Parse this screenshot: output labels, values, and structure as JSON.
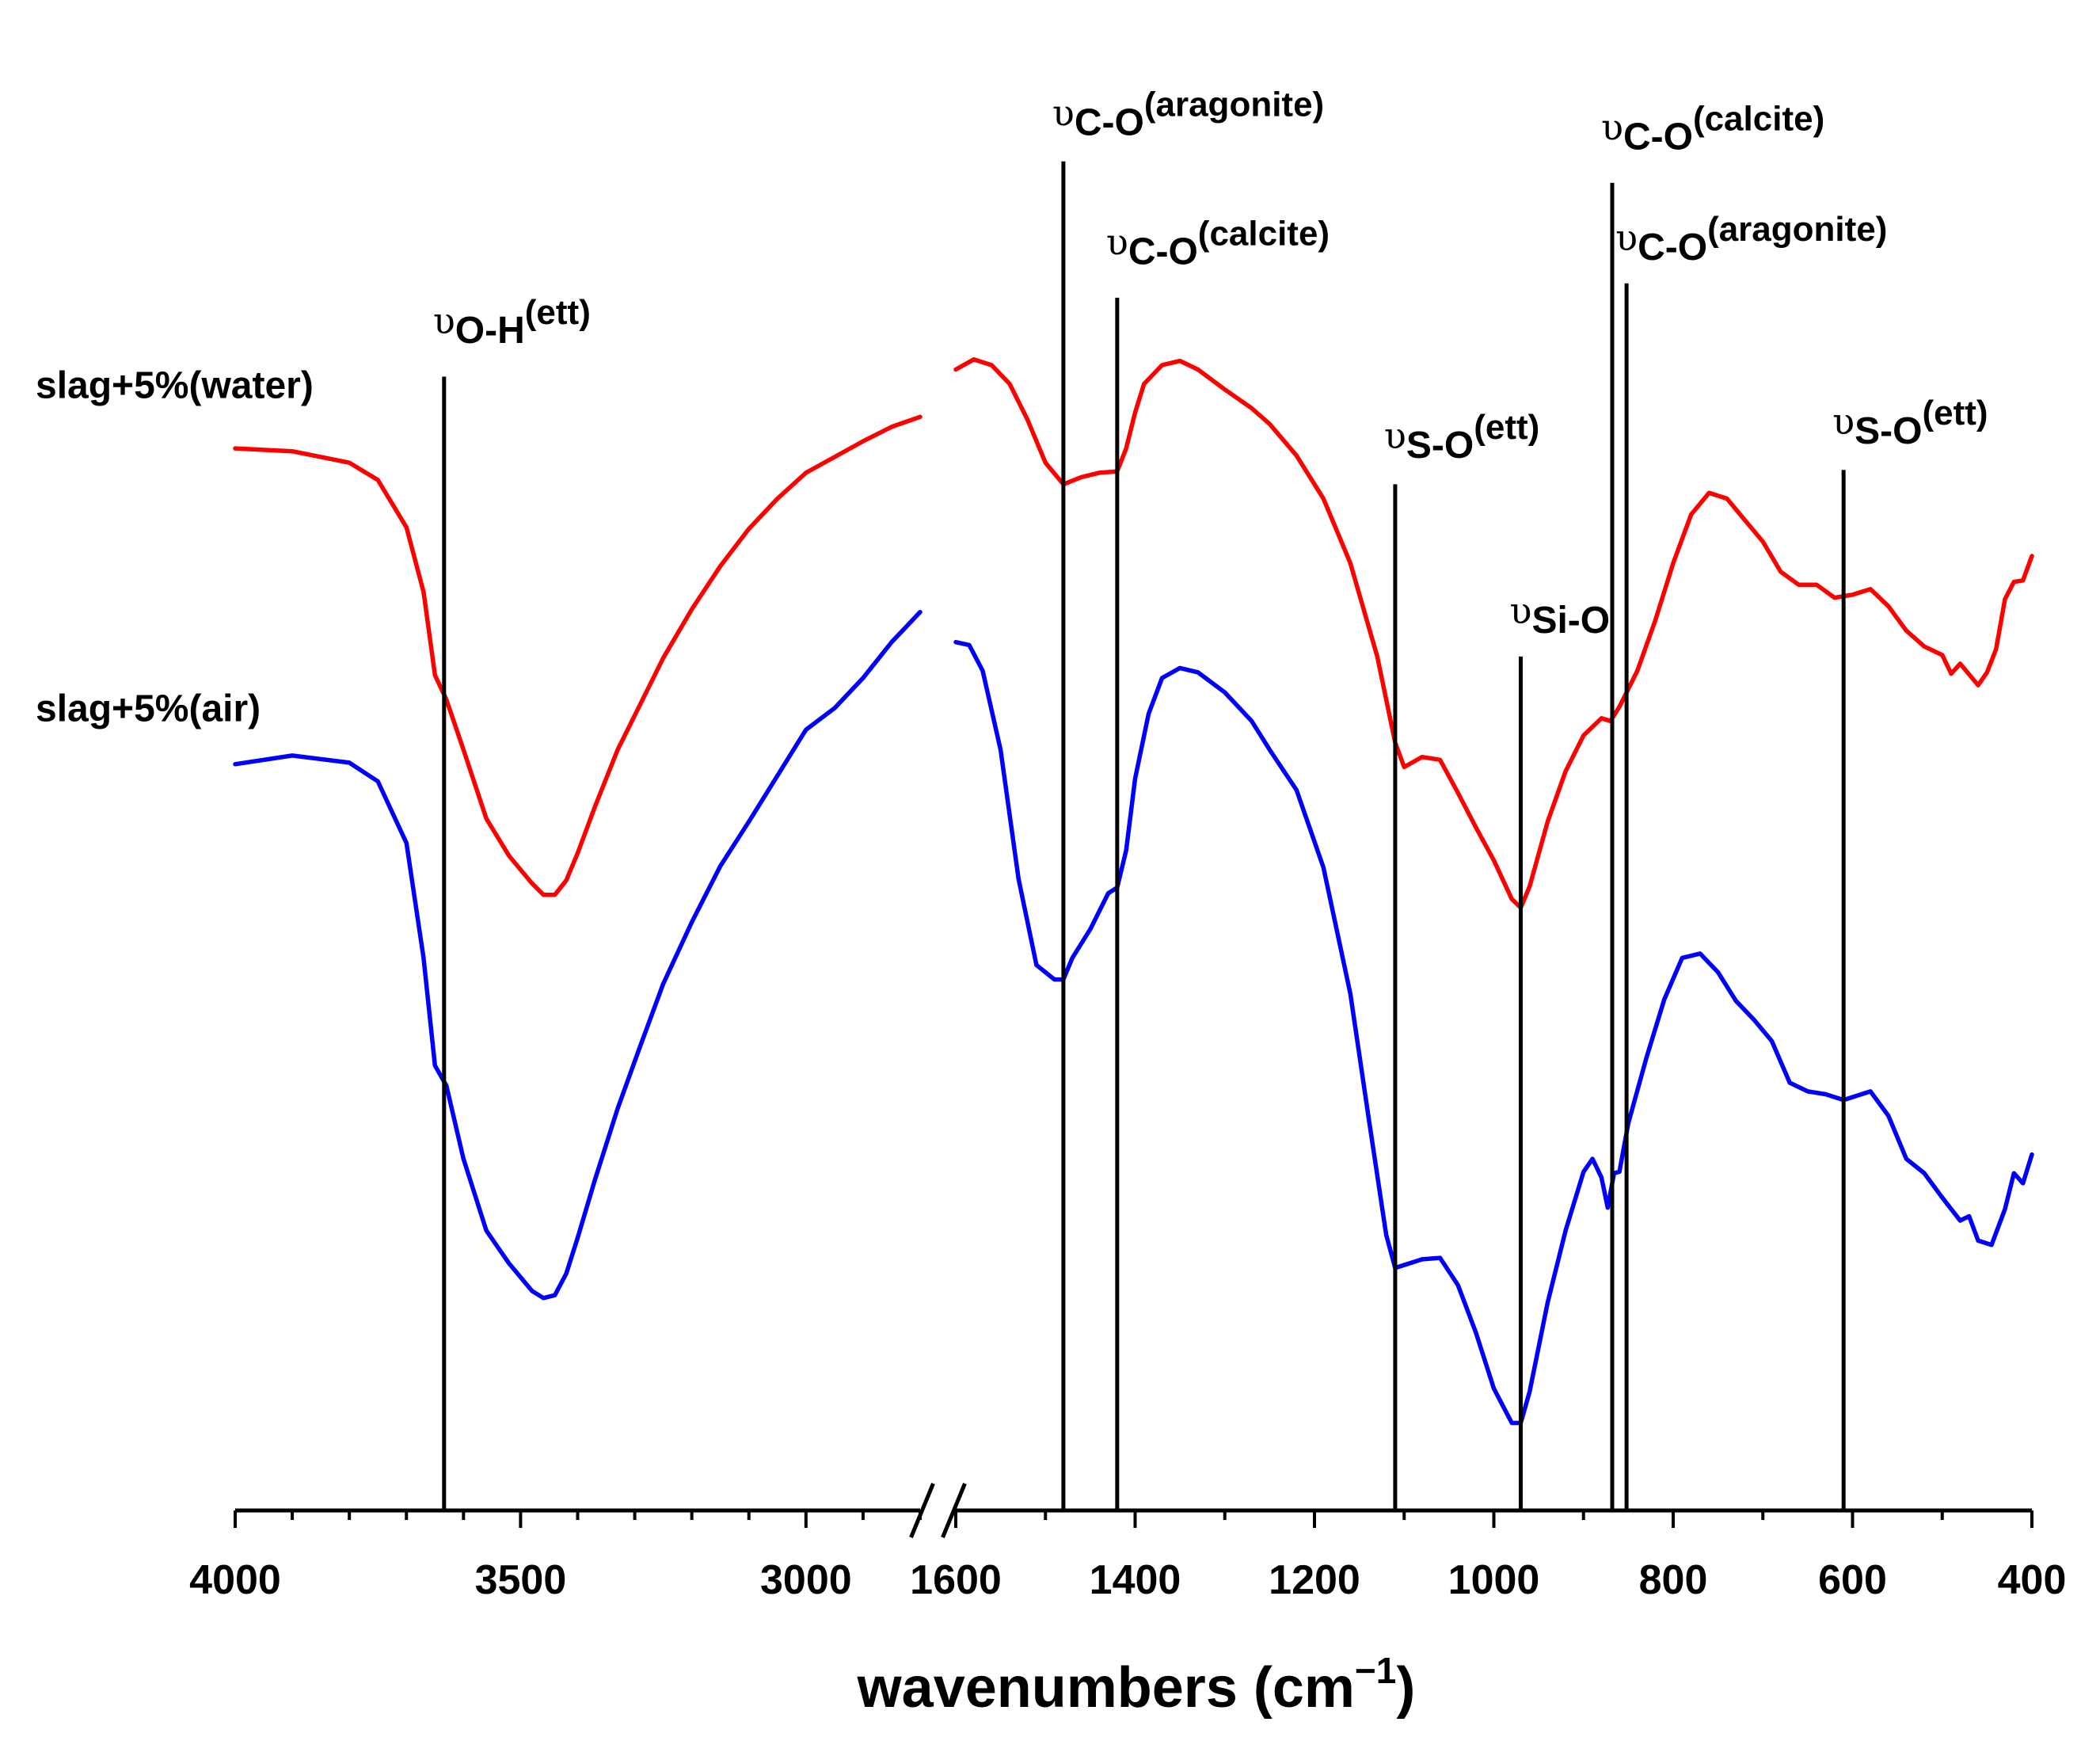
{
  "chart_data": {
    "type": "line",
    "title": "",
    "xlabel": "wavenumbers (cm",
    "xlabel_sup": "−1",
    "xlabel_close": ")",
    "ylabel": "",
    "x_reversed": true,
    "axis_break": {
      "between": [
        2800,
        1600
      ]
    },
    "segments": [
      {
        "xlim": [
          4000,
          2800
        ],
        "ticks": [
          4000,
          3500,
          3000
        ],
        "minor_step": 100
      },
      {
        "xlim": [
          1600,
          400
        ],
        "ticks": [
          1600,
          1400,
          1200,
          1000,
          800,
          600,
          400
        ],
        "minor_step": 100
      }
    ],
    "tick_labels": [
      "4000",
      "3500",
      "3000",
      "1600",
      "1400",
      "1200",
      "1000",
      "800",
      "600",
      "400"
    ],
    "y_units": "relative transmittance (arbitrary, 0 = bottom axis, 100 = top)",
    "ylim": [
      0,
      100
    ],
    "series": [
      {
        "name": "slag+5%(water)",
        "color": "#ff0000",
        "points": [
          [
            4000,
            74.0
          ],
          [
            3900,
            73.8
          ],
          [
            3800,
            73.0
          ],
          [
            3750,
            71.8
          ],
          [
            3700,
            68.5
          ],
          [
            3670,
            64.0
          ],
          [
            3650,
            58.2
          ],
          [
            3630,
            56.5
          ],
          [
            3600,
            53.0
          ],
          [
            3560,
            48.2
          ],
          [
            3520,
            45.6
          ],
          [
            3480,
            43.7
          ],
          [
            3460,
            42.9
          ],
          [
            3440,
            42.9
          ],
          [
            3420,
            43.9
          ],
          [
            3400,
            45.8
          ],
          [
            3370,
            49.0
          ],
          [
            3330,
            53.0
          ],
          [
            3290,
            56.2
          ],
          [
            3250,
            59.4
          ],
          [
            3200,
            62.8
          ],
          [
            3150,
            65.8
          ],
          [
            3100,
            68.4
          ],
          [
            3050,
            70.5
          ],
          [
            3000,
            72.3
          ],
          [
            2950,
            73.4
          ],
          [
            2900,
            74.5
          ],
          [
            2850,
            75.5
          ],
          [
            2800,
            76.2
          ],
          [
            1600,
            79.5
          ],
          [
            1580,
            80.2
          ],
          [
            1560,
            79.8
          ],
          [
            1540,
            78.5
          ],
          [
            1520,
            76.0
          ],
          [
            1500,
            73.0
          ],
          [
            1480,
            71.5
          ],
          [
            1460,
            72.0
          ],
          [
            1440,
            72.3
          ],
          [
            1420,
            72.4
          ],
          [
            1410,
            74.0
          ],
          [
            1400,
            76.5
          ],
          [
            1390,
            78.5
          ],
          [
            1370,
            79.8
          ],
          [
            1350,
            80.1
          ],
          [
            1330,
            79.5
          ],
          [
            1300,
            78.1
          ],
          [
            1270,
            76.8
          ],
          [
            1250,
            75.7
          ],
          [
            1220,
            73.5
          ],
          [
            1190,
            70.5
          ],
          [
            1160,
            66.0
          ],
          [
            1130,
            59.5
          ],
          [
            1110,
            53.5
          ],
          [
            1100,
            51.8
          ],
          [
            1080,
            52.5
          ],
          [
            1060,
            52.3
          ],
          [
            1040,
            50.0
          ],
          [
            1020,
            47.6
          ],
          [
            1000,
            45.3
          ],
          [
            980,
            42.6
          ],
          [
            970,
            42.0
          ],
          [
            960,
            43.5
          ],
          [
            940,
            48.0
          ],
          [
            920,
            51.5
          ],
          [
            900,
            54.0
          ],
          [
            880,
            55.2
          ],
          [
            870,
            55.0
          ],
          [
            860,
            56.0
          ],
          [
            840,
            58.5
          ],
          [
            820,
            62.0
          ],
          [
            800,
            66.0
          ],
          [
            780,
            69.4
          ],
          [
            760,
            70.9
          ],
          [
            740,
            70.5
          ],
          [
            720,
            69.0
          ],
          [
            700,
            67.5
          ],
          [
            680,
            65.4
          ],
          [
            660,
            64.5
          ],
          [
            640,
            64.5
          ],
          [
            620,
            63.6
          ],
          [
            600,
            63.8
          ],
          [
            580,
            64.2
          ],
          [
            560,
            63.0
          ],
          [
            540,
            61.3
          ],
          [
            520,
            60.2
          ],
          [
            500,
            59.6
          ],
          [
            490,
            58.3
          ],
          [
            480,
            59.0
          ],
          [
            460,
            57.5
          ],
          [
            450,
            58.4
          ],
          [
            440,
            60.0
          ],
          [
            430,
            63.5
          ],
          [
            420,
            64.7
          ],
          [
            410,
            64.8
          ],
          [
            400,
            66.5
          ]
        ]
      },
      {
        "name": "slag+5%(air)",
        "color": "#0000ff",
        "points": [
          [
            4000,
            52.0
          ],
          [
            3900,
            52.6
          ],
          [
            3800,
            52.1
          ],
          [
            3750,
            50.8
          ],
          [
            3700,
            46.5
          ],
          [
            3670,
            38.5
          ],
          [
            3650,
            31.0
          ],
          [
            3630,
            29.6
          ],
          [
            3600,
            24.5
          ],
          [
            3560,
            19.5
          ],
          [
            3520,
            17.2
          ],
          [
            3480,
            15.3
          ],
          [
            3460,
            14.8
          ],
          [
            3440,
            15.0
          ],
          [
            3420,
            16.5
          ],
          [
            3400,
            19.0
          ],
          [
            3370,
            23.0
          ],
          [
            3330,
            28.0
          ],
          [
            3290,
            32.4
          ],
          [
            3250,
            36.7
          ],
          [
            3200,
            41.0
          ],
          [
            3150,
            44.9
          ],
          [
            3100,
            48.0
          ],
          [
            3050,
            51.2
          ],
          [
            3000,
            54.4
          ],
          [
            2950,
            55.9
          ],
          [
            2900,
            58.0
          ],
          [
            2850,
            60.5
          ],
          [
            2800,
            62.6
          ],
          [
            1600,
            60.5
          ],
          [
            1585,
            60.3
          ],
          [
            1570,
            58.5
          ],
          [
            1550,
            53.0
          ],
          [
            1530,
            44.0
          ],
          [
            1510,
            38.0
          ],
          [
            1490,
            37.0
          ],
          [
            1480,
            37.0
          ],
          [
            1470,
            38.5
          ],
          [
            1450,
            40.5
          ],
          [
            1430,
            43.0
          ],
          [
            1420,
            43.4
          ],
          [
            1410,
            46.0
          ],
          [
            1400,
            51.0
          ],
          [
            1385,
            55.5
          ],
          [
            1370,
            58.0
          ],
          [
            1350,
            58.7
          ],
          [
            1330,
            58.4
          ],
          [
            1300,
            57.0
          ],
          [
            1270,
            55.0
          ],
          [
            1250,
            53.0
          ],
          [
            1220,
            50.2
          ],
          [
            1190,
            44.8
          ],
          [
            1160,
            36.0
          ],
          [
            1140,
            27.5
          ],
          [
            1120,
            19.2
          ],
          [
            1110,
            16.9
          ],
          [
            1080,
            17.5
          ],
          [
            1060,
            17.6
          ],
          [
            1040,
            15.7
          ],
          [
            1020,
            12.4
          ],
          [
            1000,
            8.5
          ],
          [
            980,
            6.1
          ],
          [
            970,
            6.1
          ],
          [
            960,
            8.3
          ],
          [
            940,
            14.5
          ],
          [
            920,
            19.5
          ],
          [
            900,
            23.6
          ],
          [
            890,
            24.5
          ],
          [
            880,
            23.2
          ],
          [
            873,
            21.1
          ],
          [
            866,
            23.5
          ],
          [
            860,
            23.6
          ],
          [
            850,
            27.0
          ],
          [
            830,
            31.5
          ],
          [
            810,
            35.6
          ],
          [
            790,
            38.5
          ],
          [
            770,
            38.8
          ],
          [
            750,
            37.5
          ],
          [
            730,
            35.5
          ],
          [
            710,
            34.2
          ],
          [
            690,
            32.7
          ],
          [
            670,
            29.8
          ],
          [
            650,
            29.2
          ],
          [
            630,
            29.0
          ],
          [
            610,
            28.6
          ],
          [
            600,
            28.8
          ],
          [
            580,
            29.2
          ],
          [
            560,
            27.5
          ],
          [
            540,
            24.5
          ],
          [
            520,
            23.5
          ],
          [
            500,
            21.8
          ],
          [
            480,
            20.2
          ],
          [
            470,
            20.5
          ],
          [
            460,
            18.8
          ],
          [
            445,
            18.5
          ],
          [
            430,
            21.0
          ],
          [
            420,
            23.5
          ],
          [
            410,
            22.8
          ],
          [
            400,
            24.8
          ]
        ]
      }
    ],
    "legend": [
      {
        "label": "slag+5%(water)",
        "series": 0,
        "y": 77.5
      },
      {
        "label": "slag+5%(air)",
        "series": 1,
        "y": 55.0
      }
    ],
    "annotations": [
      {
        "x": 3634,
        "y_top": 79,
        "prefix": "υ",
        "main": "O-H",
        "sup": "(ett)",
        "label_y": 82
      },
      {
        "x": 1480,
        "y_top": 94,
        "prefix": "υ",
        "main": "C-O",
        "sup": "(aragonite)",
        "label_y": 96.5
      },
      {
        "x": 1420,
        "y_top": 84.5,
        "prefix": "υ",
        "main": "C-O",
        "sup": "(calcite)",
        "label_y": 87.5
      },
      {
        "x": 1110,
        "y_top": 71.5,
        "prefix": "υ",
        "main": "S-O",
        "sup": "(ett)",
        "label_y": 74
      },
      {
        "x": 970,
        "y_top": 59.5,
        "prefix": "υ",
        "main": "Si-O",
        "sup": "",
        "label_y": 61.8
      },
      {
        "x": 868,
        "y_top": 92.5,
        "prefix": "υ",
        "main": "C-O",
        "sup": "(calcite)",
        "label_y": 95.5
      },
      {
        "x": 852,
        "y_top": 85.5,
        "prefix": "υ",
        "main": "C-O",
        "sup": "(aragonite)",
        "label_y": 87.8
      },
      {
        "x": 610,
        "y_top": 72.5,
        "prefix": "υ",
        "main": "S-O",
        "sup": "(ett)",
        "label_y": 75
      }
    ]
  }
}
